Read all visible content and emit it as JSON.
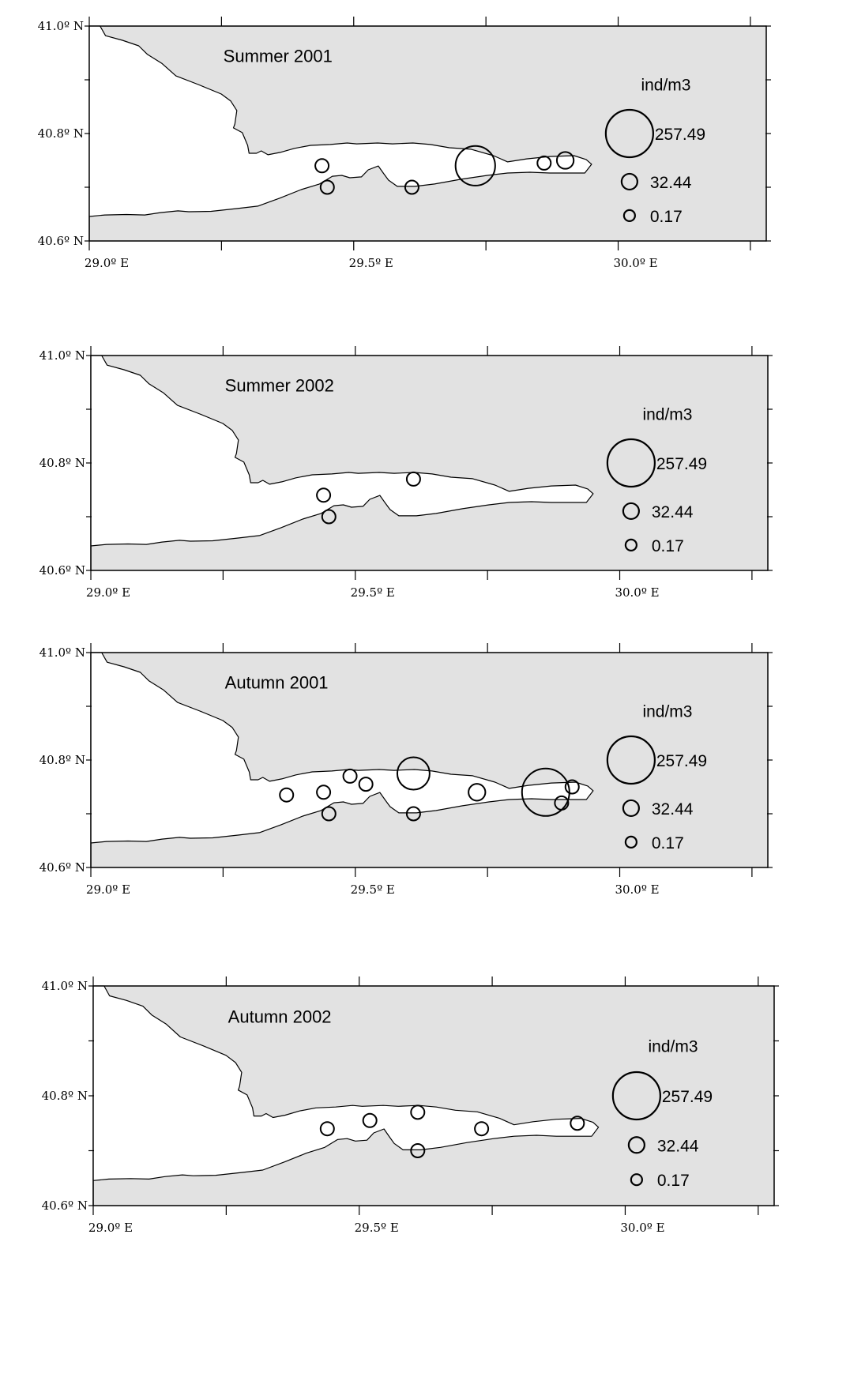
{
  "legend": {
    "unit": "ind/m3",
    "levels": [
      {
        "value": 257.49,
        "label": "257.49"
      },
      {
        "value": 32.44,
        "label": "32.44"
      },
      {
        "value": 0.17,
        "label": "0.17"
      }
    ]
  },
  "axes": {
    "x_ticks": [
      {
        "value": 29.0,
        "label": "29.0º E"
      },
      {
        "value": 29.5,
        "label": "29.5º E"
      },
      {
        "value": 30.0,
        "label": "30.0º E"
      }
    ],
    "y_ticks": [
      {
        "value": 41.0,
        "label": "41.0º N"
      },
      {
        "value": 40.8,
        "label": "40.8º N"
      },
      {
        "value": 40.6,
        "label": "40.6º N"
      }
    ],
    "lon_range": [
      29.0,
      30.28
    ],
    "lat_range": [
      40.6,
      41.0
    ]
  },
  "colors": {
    "land": "#e2e2e2",
    "water": "#ffffff",
    "outline": "#000000"
  },
  "panels": [
    {
      "title": "Summer 2001",
      "stations": [
        {
          "lon": 29.44,
          "lat": 40.74,
          "abundance": 0.17
        },
        {
          "lon": 29.45,
          "lat": 40.7,
          "abundance": 0.17
        },
        {
          "lon": 29.61,
          "lat": 40.7,
          "abundance": 0.17
        },
        {
          "lon": 29.73,
          "lat": 40.74,
          "abundance": 180
        },
        {
          "lon": 29.86,
          "lat": 40.745,
          "abundance": 0.17
        },
        {
          "lon": 29.9,
          "lat": 40.75,
          "abundance": 32.44
        }
      ]
    },
    {
      "title": "Summer 2002",
      "stations": [
        {
          "lon": 29.44,
          "lat": 40.74,
          "abundance": 0.17
        },
        {
          "lon": 29.45,
          "lat": 40.7,
          "abundance": 0.17
        },
        {
          "lon": 29.61,
          "lat": 40.77,
          "abundance": 0.17
        }
      ]
    },
    {
      "title": "Autumn 2001",
      "stations": [
        {
          "lon": 29.37,
          "lat": 40.735,
          "abundance": 0.17
        },
        {
          "lon": 29.44,
          "lat": 40.74,
          "abundance": 0.17
        },
        {
          "lon": 29.45,
          "lat": 40.7,
          "abundance": 0.17
        },
        {
          "lon": 29.49,
          "lat": 40.77,
          "abundance": 0.17
        },
        {
          "lon": 29.52,
          "lat": 40.755,
          "abundance": 0.17
        },
        {
          "lon": 29.61,
          "lat": 40.775,
          "abundance": 120
        },
        {
          "lon": 29.61,
          "lat": 40.7,
          "abundance": 0.17
        },
        {
          "lon": 29.73,
          "lat": 40.74,
          "abundance": 32.44
        },
        {
          "lon": 29.86,
          "lat": 40.74,
          "abundance": 257.49
        },
        {
          "lon": 29.89,
          "lat": 40.72,
          "abundance": 0.17
        },
        {
          "lon": 29.91,
          "lat": 40.75,
          "abundance": 0.17
        }
      ]
    },
    {
      "title": "Autumn 2002",
      "stations": [
        {
          "lon": 29.44,
          "lat": 40.74,
          "abundance": 0.17
        },
        {
          "lon": 29.52,
          "lat": 40.755,
          "abundance": 0.17
        },
        {
          "lon": 29.61,
          "lat": 40.77,
          "abundance": 0.17
        },
        {
          "lon": 29.61,
          "lat": 40.7,
          "abundance": 0.17
        },
        {
          "lon": 29.73,
          "lat": 40.74,
          "abundance": 0.17
        },
        {
          "lon": 29.91,
          "lat": 40.75,
          "abundance": 0.17
        }
      ]
    }
  ]
}
